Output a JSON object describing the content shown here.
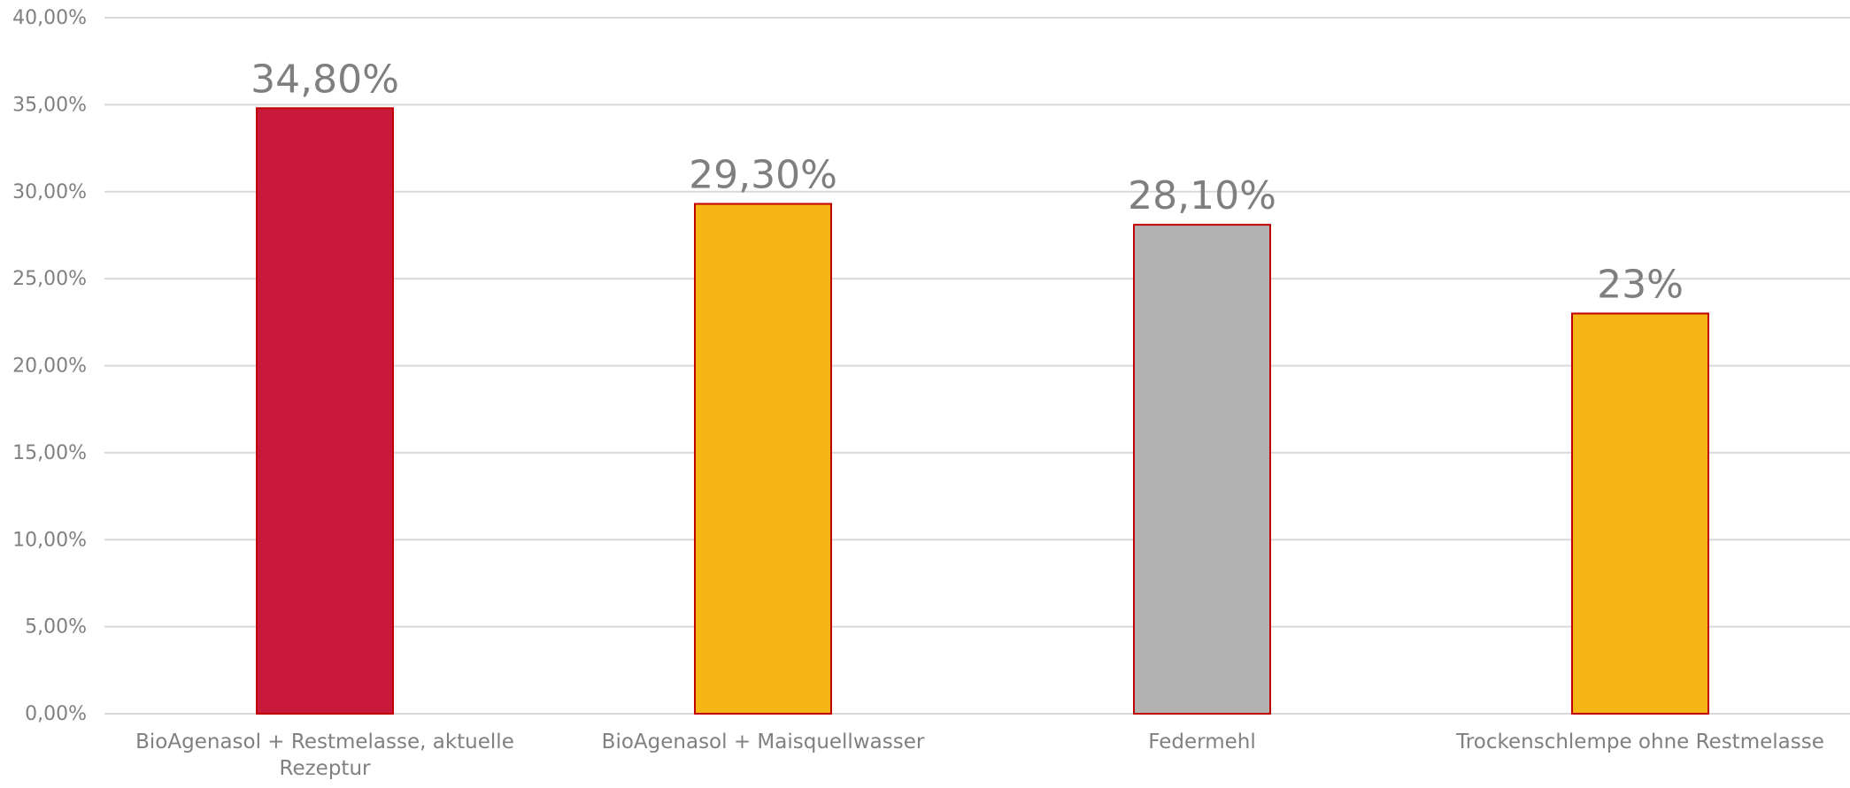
{
  "chart_data": {
    "type": "bar",
    "categories": [
      [
        "BioAgenasol + Restmelasse, aktuelle",
        "Rezeptur"
      ],
      [
        "BioAgenasol + Maisquellwasser"
      ],
      [
        "Federmehl"
      ],
      [
        "Trockenschlempe ohne Restmelasse"
      ]
    ],
    "values": [
      34.8,
      29.3,
      28.1,
      23.0
    ],
    "data_labels": [
      "34,80%",
      "29,30%",
      "28,10%",
      "23%"
    ],
    "bar_colors": [
      "#c8193a",
      "#f5b514",
      "#b2b2b2",
      "#f5b514"
    ],
    "bar_outline_color": "#c00000",
    "ylim": [
      0,
      40
    ],
    "y_ticks": [
      0,
      5,
      10,
      15,
      20,
      25,
      30,
      35,
      40
    ],
    "y_tick_labels": [
      "0,00%",
      "5,00%",
      "10,00%",
      "15,00%",
      "20,00%",
      "25,00%",
      "30,00%",
      "35,00%",
      "40,00%"
    ],
    "grid": true,
    "legend": "none",
    "title": "",
    "xlabel": "",
    "ylabel": ""
  }
}
